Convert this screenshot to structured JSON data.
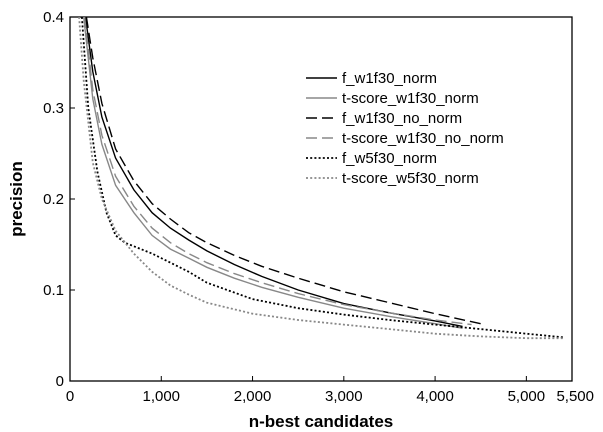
{
  "chart_data": {
    "type": "line",
    "xlabel": "n-best candidates",
    "ylabel": "precision",
    "xlim": [
      0,
      5500
    ],
    "ylim": [
      0,
      0.4
    ],
    "x_ticks": [
      {
        "value": 0,
        "label": "0"
      },
      {
        "value": 1000,
        "label": "1,000"
      },
      {
        "value": 2000,
        "label": "2,000"
      },
      {
        "value": 3000,
        "label": "3,000"
      },
      {
        "value": 4000,
        "label": "4,000"
      },
      {
        "value": 5000,
        "label": "5,000"
      },
      {
        "value": 5500,
        "label": "5,500"
      }
    ],
    "y_ticks": [
      {
        "value": 0,
        "label": "0"
      },
      {
        "value": 0.1,
        "label": "0.1"
      },
      {
        "value": 0.2,
        "label": "0.2"
      },
      {
        "value": 0.3,
        "label": "0.3"
      },
      {
        "value": 0.4,
        "label": "0.4"
      }
    ],
    "grid": false,
    "legend_position": "top-right",
    "series": [
      {
        "name": "f_w1f30_norm",
        "color": "#000000",
        "dash": "solid",
        "x": [
          170,
          250,
          350,
          500,
          700,
          900,
          1100,
          1300,
          1500,
          1800,
          2100,
          2500,
          3000,
          3500,
          4000,
          4300
        ],
        "y": [
          0.4,
          0.34,
          0.29,
          0.245,
          0.21,
          0.185,
          0.168,
          0.155,
          0.143,
          0.128,
          0.115,
          0.1,
          0.085,
          0.075,
          0.066,
          0.06
        ]
      },
      {
        "name": "t-score_w1f30_norm",
        "color": "#888888",
        "dash": "solid",
        "x": [
          150,
          250,
          350,
          500,
          700,
          900,
          1100,
          1300,
          1500,
          1800,
          2100,
          2500,
          3000,
          3500,
          4000,
          4300
        ],
        "y": [
          0.4,
          0.31,
          0.26,
          0.215,
          0.185,
          0.16,
          0.145,
          0.135,
          0.125,
          0.113,
          0.103,
          0.092,
          0.08,
          0.071,
          0.063,
          0.058
        ]
      },
      {
        "name": "f_w1f30_no_norm",
        "color": "#000000",
        "dash": "long",
        "x": [
          180,
          250,
          350,
          500,
          700,
          900,
          1100,
          1300,
          1500,
          1800,
          2100,
          2500,
          3000,
          3500,
          4000,
          4500
        ],
        "y": [
          0.4,
          0.355,
          0.305,
          0.255,
          0.22,
          0.195,
          0.178,
          0.163,
          0.152,
          0.138,
          0.126,
          0.113,
          0.098,
          0.086,
          0.074,
          0.063
        ]
      },
      {
        "name": "t-score_w1f30_no_norm",
        "color": "#888888",
        "dash": "long",
        "x": [
          160,
          250,
          350,
          500,
          700,
          900,
          1100,
          1300,
          1500,
          1800,
          2100,
          2500,
          3000,
          3500,
          4000,
          4400
        ],
        "y": [
          0.4,
          0.32,
          0.27,
          0.225,
          0.192,
          0.168,
          0.152,
          0.14,
          0.13,
          0.118,
          0.108,
          0.096,
          0.084,
          0.075,
          0.067,
          0.062
        ]
      },
      {
        "name": "f_w5f30_norm",
        "color": "#000000",
        "dash": "dotted",
        "x": [
          130,
          200,
          300,
          400,
          500,
          600,
          700,
          900,
          1100,
          1300,
          1500,
          2000,
          2500,
          3000,
          3500,
          4000,
          4500,
          5000,
          5400
        ],
        "y": [
          0.4,
          0.3,
          0.23,
          0.185,
          0.16,
          0.152,
          0.148,
          0.14,
          0.13,
          0.12,
          0.108,
          0.09,
          0.08,
          0.073,
          0.067,
          0.062,
          0.057,
          0.052,
          0.048
        ]
      },
      {
        "name": "t-score_w5f30_norm",
        "color": "#888888",
        "dash": "dotted",
        "x": [
          100,
          150,
          250,
          350,
          500,
          700,
          900,
          1100,
          1300,
          1500,
          2000,
          2500,
          3000,
          3500,
          4000,
          4500,
          5000,
          5400
        ],
        "y": [
          0.4,
          0.33,
          0.24,
          0.2,
          0.165,
          0.14,
          0.12,
          0.105,
          0.095,
          0.086,
          0.074,
          0.067,
          0.062,
          0.057,
          0.052,
          0.049,
          0.047,
          0.047
        ]
      }
    ]
  }
}
